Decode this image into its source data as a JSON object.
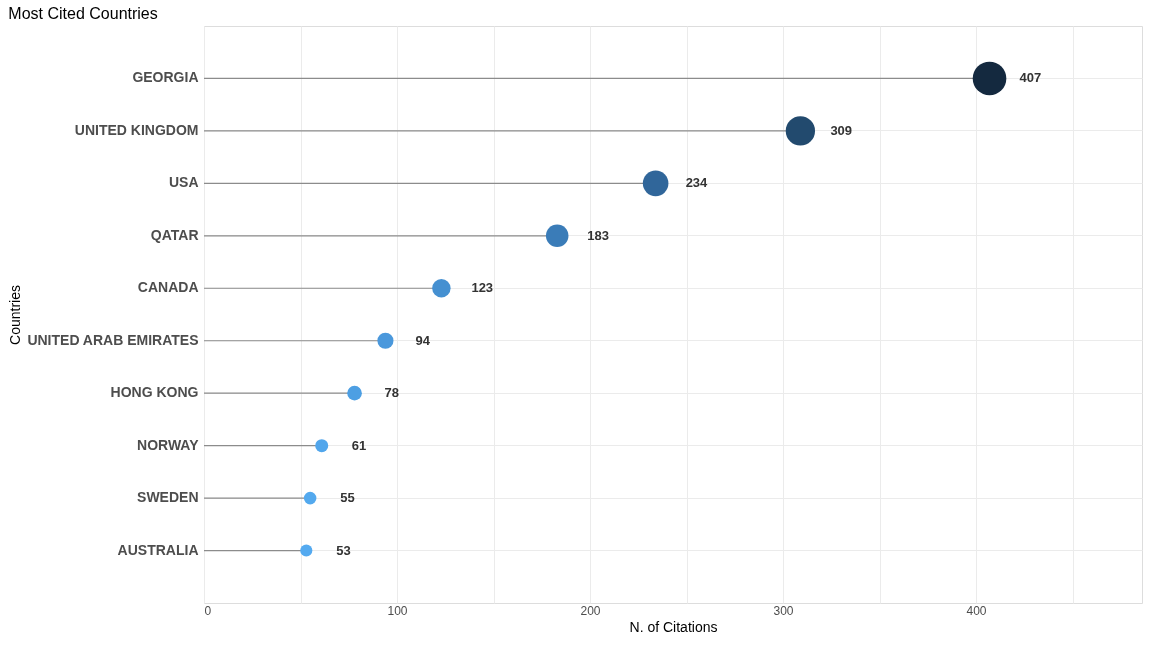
{
  "chart_data": {
    "type": "lollipop",
    "orientation": "horizontal",
    "title": "Most Cited Countries",
    "xlabel": "N. of Citations",
    "ylabel": "Countries",
    "categories": [
      "GEORGIA",
      "UNITED KINGDOM",
      "USA",
      "QATAR",
      "CANADA",
      "UNITED ARAB EMIRATES",
      "HONG KONG",
      "NORWAY",
      "SWEDEN",
      "AUSTRALIA"
    ],
    "values": [
      407,
      309,
      234,
      183,
      123,
      94,
      78,
      61,
      55,
      53
    ],
    "colors": [
      "#14293f",
      "#224a6e",
      "#30669a",
      "#3a7cb8",
      "#4590d1",
      "#4a98dc",
      "#4d9fe3",
      "#51a6ec",
      "#53a9ee",
      "#54aaf0"
    ],
    "sizes": [
      1,
      0.76,
      0.58,
      0.45,
      0.3,
      0.23,
      0.19,
      0.15,
      0.14,
      0.13
    ],
    "xlim": [
      0,
      486
    ],
    "xticks": [
      0,
      {
        "value": 50,
        "label": null
      },
      100,
      {
        "value": 150,
        "label": null
      },
      200,
      {
        "value": 250,
        "label": null
      },
      300,
      {
        "value": 350,
        "label": null
      },
      400,
      {
        "value": 450,
        "label": null
      }
    ],
    "data_labels": true,
    "grid": true
  }
}
